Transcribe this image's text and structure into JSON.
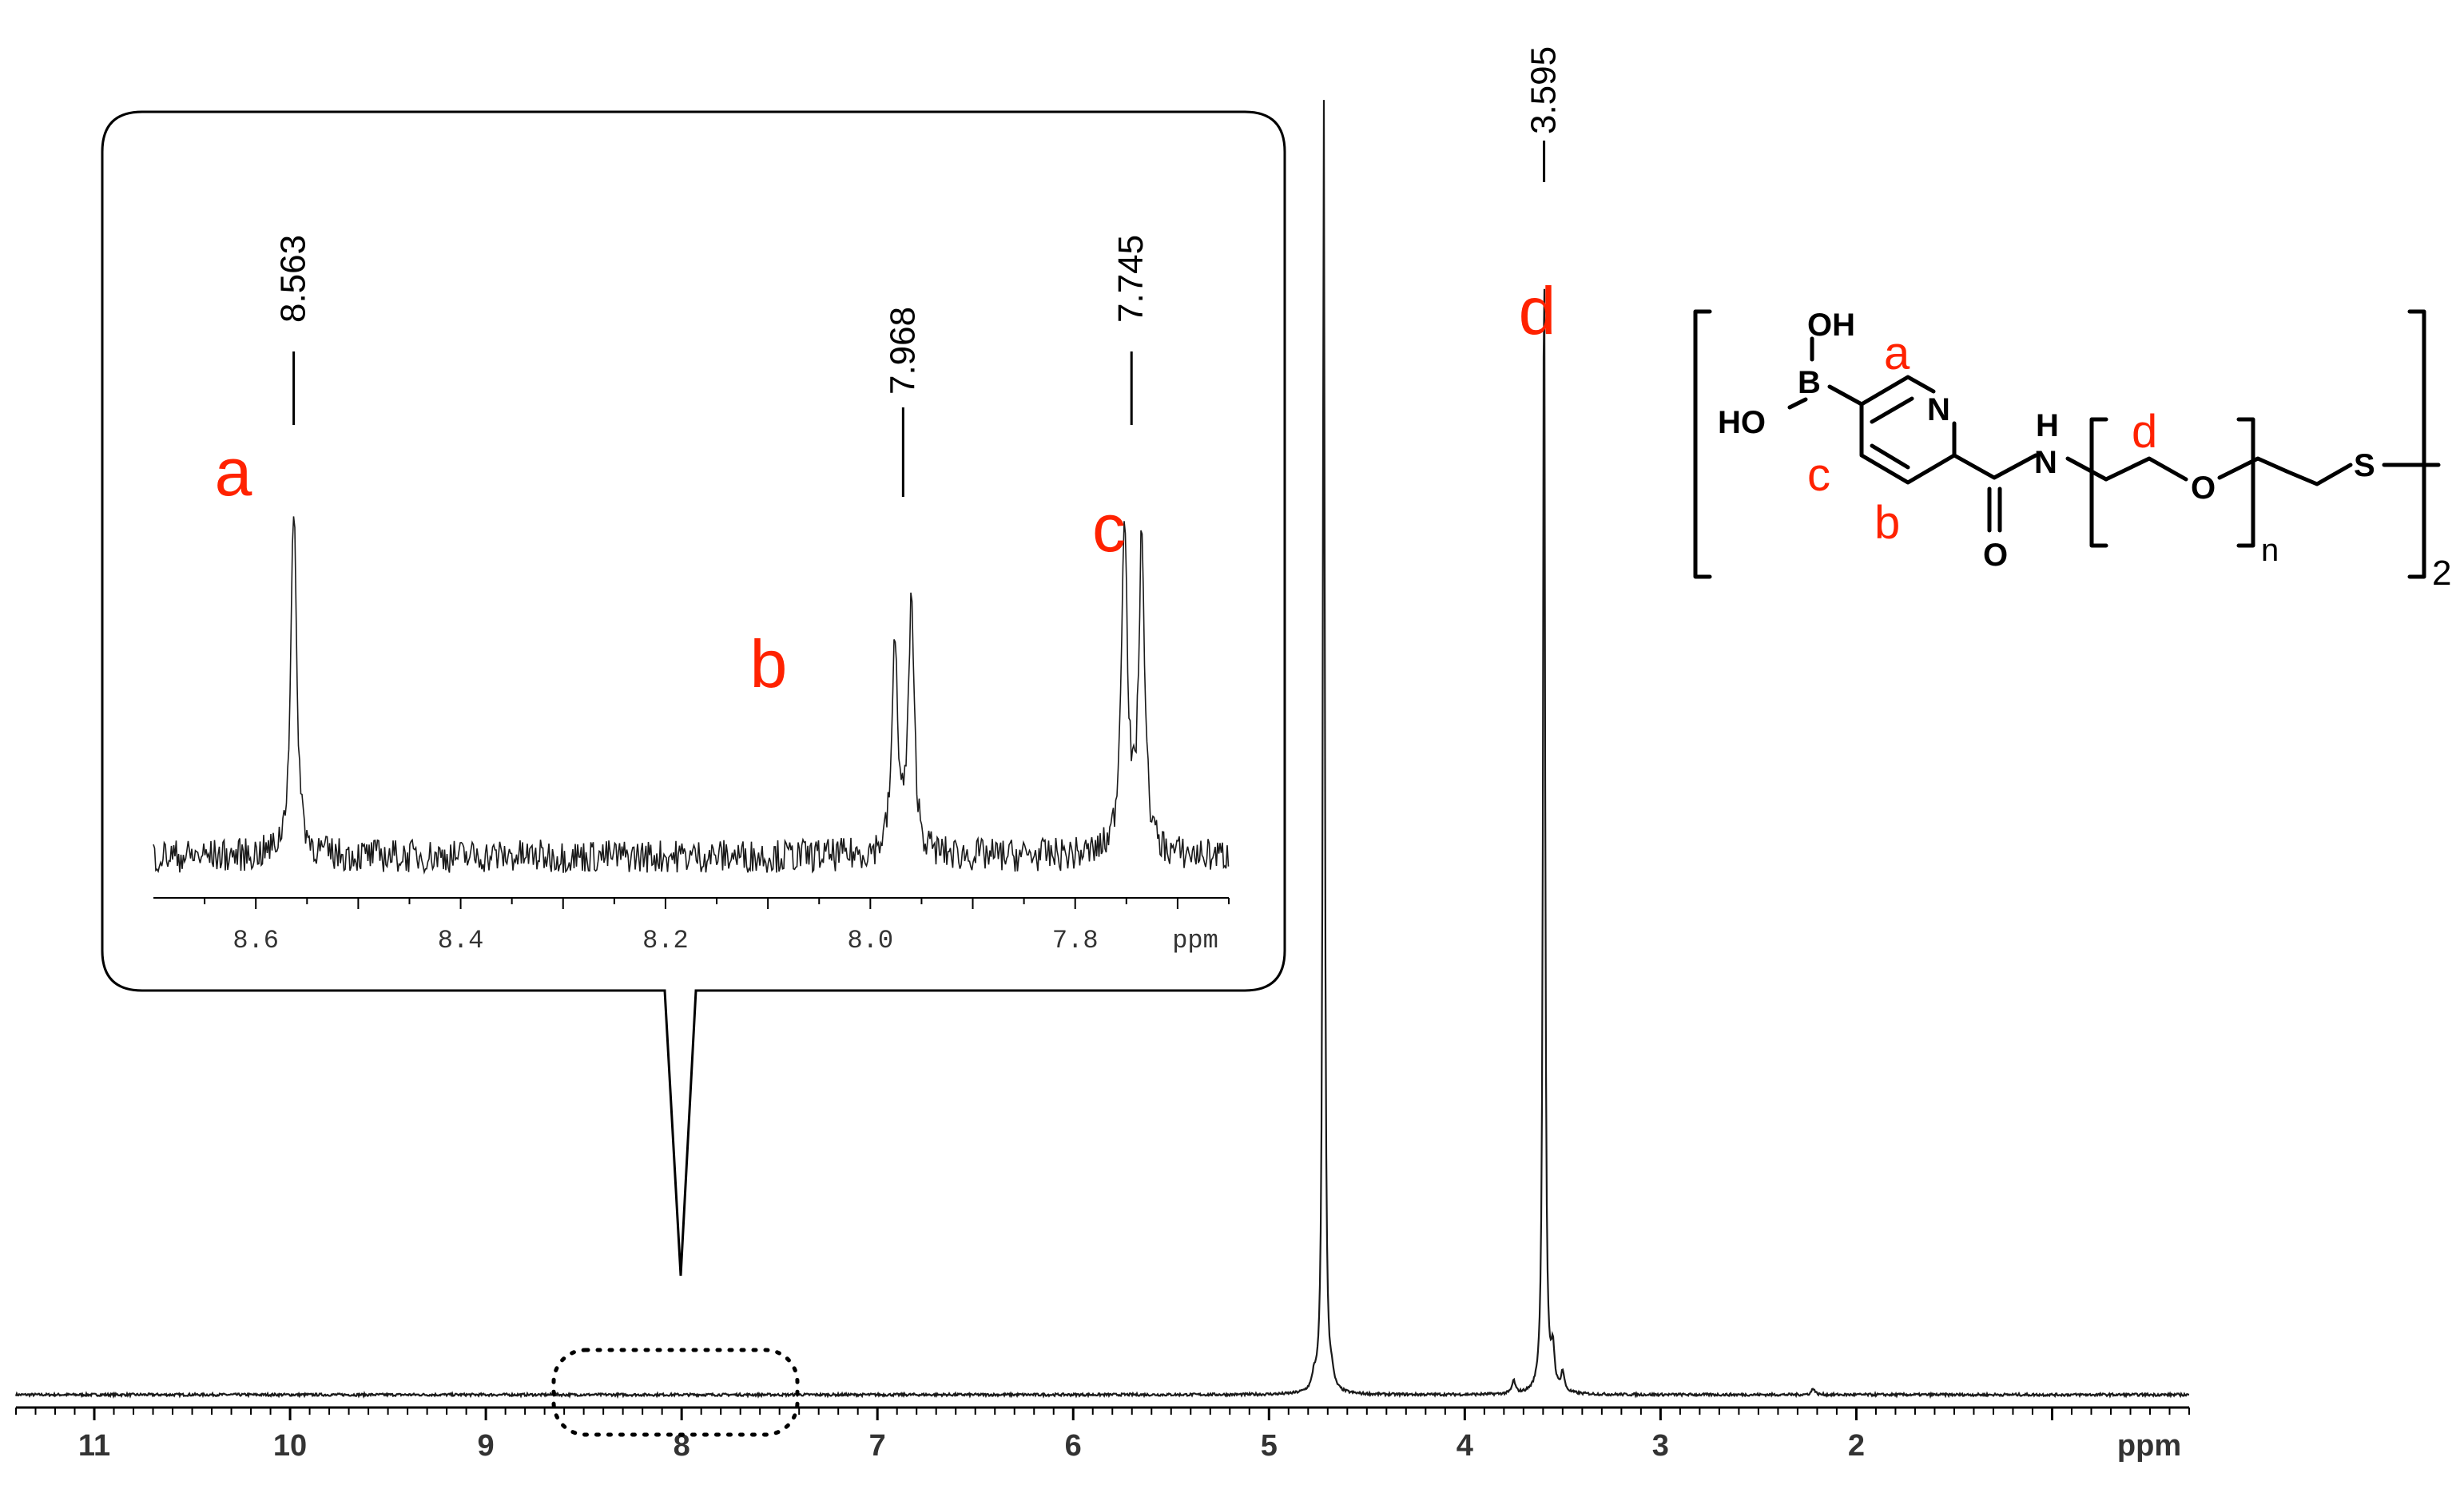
{
  "chart_data": [
    {
      "type": "line",
      "ylabel": "",
      "xlim": [
        11.4,
        0.3
      ],
      "x_ticks": [
        "11",
        "10",
        "9",
        "8",
        "7",
        "6",
        "5",
        "4",
        "3",
        "2"
      ],
      "x_unit": "ppm",
      "x_reversed": true,
      "grid": false,
      "peaks": [
        {
          "x": 4.72,
          "height": 1.0,
          "width": 0.006,
          "label": ""
        },
        {
          "x": 3.595,
          "height": 0.92,
          "width": 0.006,
          "label": "3.595"
        }
      ],
      "assignments": [
        {
          "x": 3.595,
          "label": "d"
        }
      ]
    },
    {
      "type": "line",
      "xlim": [
        8.7,
        7.65
      ],
      "x_ticks": [
        "8.6",
        "8.4",
        "8.2",
        "8.0",
        "7.8"
      ],
      "x_unit": "ppm",
      "x_reversed": true,
      "grid": false,
      "peaks": [
        {
          "x": 8.563,
          "height": 0.87,
          "label": "8.563"
        },
        {
          "x": 7.976,
          "height": 0.52,
          "label": ""
        },
        {
          "x": 7.96,
          "height": 0.62,
          "label": "7.968"
        },
        {
          "x": 7.752,
          "height": 0.86,
          "label": "7.745"
        },
        {
          "x": 7.735,
          "height": 0.79,
          "label": ""
        }
      ],
      "assignments": [
        {
          "x": 8.563,
          "label": "a"
        },
        {
          "x": 7.968,
          "label": "b"
        },
        {
          "x": 7.745,
          "label": "c"
        }
      ]
    }
  ],
  "structure": {
    "oh_top": "OH",
    "boron": "B",
    "ho_left": "HO",
    "nitrogen_ring": "N",
    "nh": "H",
    "n_amide": "N",
    "oxygen_carbonyl": "O",
    "oxygen_ether": "O",
    "sulfur": "S",
    "subscript_n": "n",
    "subscript_2": "2",
    "label_a": "a",
    "label_b": "b",
    "label_c": "c",
    "label_d": "d"
  },
  "colors": {
    "label": "#ff2200",
    "trace": "#1a1a1a"
  }
}
